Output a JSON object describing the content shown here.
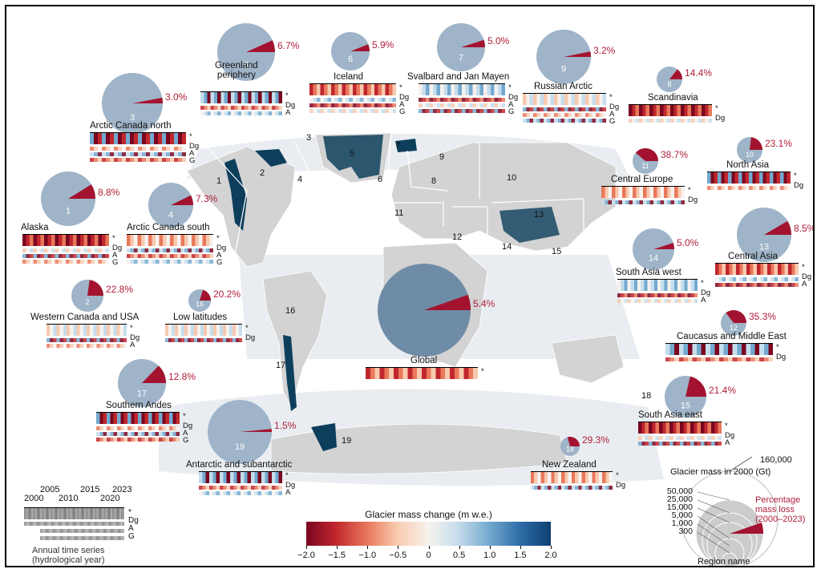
{
  "regions": [
    {
      "id": "1",
      "name": "Alaska",
      "pct": "8.8%",
      "rows": [
        "*",
        "Dg",
        "A",
        "G"
      ]
    },
    {
      "id": "2",
      "name": "Western Canada and USA",
      "pct": "22.8%",
      "rows": [
        "*",
        "Dg",
        "A"
      ]
    },
    {
      "id": "3",
      "name": "Arctic Canada north",
      "pct": "3.0%",
      "rows": [
        "*",
        "Dg",
        "A",
        "G"
      ]
    },
    {
      "id": "4",
      "name": "Arctic Canada south",
      "pct": "7.3%",
      "rows": [
        "*",
        "Dg",
        "A",
        "G"
      ]
    },
    {
      "id": "5",
      "name": "Greenland\nperiphery",
      "pct": "6.7%",
      "rows": [
        "*",
        "Dg",
        "A"
      ]
    },
    {
      "id": "6",
      "name": "Iceland",
      "pct": "5.9%",
      "rows": [
        "*",
        "Dg",
        "A",
        "G"
      ]
    },
    {
      "id": "7",
      "name": "Svalbard and Jan Mayen",
      "pct": "5.0%",
      "rows": [
        "*",
        "Dg",
        "A",
        "G"
      ]
    },
    {
      "id": "8",
      "name": "Scandinavia",
      "pct": "14.4%",
      "rows": [
        "*",
        "Dg"
      ]
    },
    {
      "id": "9",
      "name": "Russian Arctic",
      "pct": "3.2%",
      "rows": [
        "*",
        "Dg",
        "A",
        "G"
      ]
    },
    {
      "id": "10",
      "name": "North Asia",
      "pct": "23.1%",
      "rows": [
        "*",
        "Dg"
      ]
    },
    {
      "id": "11",
      "name": "Central Europe",
      "pct": "38.7%",
      "rows": [
        "*",
        "Dg"
      ]
    },
    {
      "id": "12",
      "name": "Caucasus and Middle East",
      "pct": "35.3%",
      "rows": [
        "*",
        "Dg"
      ]
    },
    {
      "id": "13",
      "name": "Central Asia",
      "pct": "8.5%",
      "rows": [
        "*",
        "Dg",
        "A"
      ]
    },
    {
      "id": "14",
      "name": "South Asia west",
      "pct": "5.0%",
      "rows": [
        "*",
        "Dg",
        "A"
      ]
    },
    {
      "id": "15",
      "name": "South Asia east",
      "pct": "21.4%",
      "rows": [
        "*",
        "Dg",
        "A"
      ]
    },
    {
      "id": "16",
      "name": "Low latitudes",
      "pct": "20.2%",
      "rows": [
        "*",
        "Dg"
      ]
    },
    {
      "id": "17",
      "name": "Southern Andes",
      "pct": "12.8%",
      "rows": [
        "*",
        "Dg",
        "A",
        "G"
      ]
    },
    {
      "id": "18",
      "name": "New Zealand",
      "pct": "29.3%",
      "rows": [
        "*",
        "Dg"
      ]
    },
    {
      "id": "19",
      "name": "Antarctic and subantarctic",
      "pct": "1.5%",
      "rows": [
        "*",
        "Dg",
        "A"
      ]
    },
    {
      "id": "",
      "name": "Global",
      "pct": "5.4%",
      "rows": [
        "*"
      ]
    }
  ],
  "map_numbers": [
    "1",
    "2",
    "3",
    "4",
    "5",
    "6",
    "7",
    "8",
    "9",
    "10",
    "11",
    "12",
    "13",
    "14",
    "15",
    "16",
    "17",
    "18",
    "19"
  ],
  "colorbar": {
    "title": "Glacier mass change (m w.e.)",
    "ticks": [
      "−2.0",
      "−1.5",
      "−1.0",
      "−0.5",
      "0",
      "0.5",
      "1.0",
      "1.5",
      "2.0"
    ]
  },
  "ts_legend": {
    "years_top": [
      "2005",
      "2015",
      "2023"
    ],
    "years_bottom": [
      "2000",
      "2010",
      "2020"
    ],
    "rows": [
      "*",
      "Dg",
      "A",
      "G"
    ],
    "caption_line1": "Annual time series",
    "caption_line2": "(hydrological year)"
  },
  "mass_legend": {
    "max_label": "160,000",
    "title": "Glacier mass in 2000 (Gt)",
    "values": [
      "50,000",
      "25,000",
      "15,000",
      "5,000",
      "1,000",
      "300"
    ],
    "pct_label_line1": "Percentage",
    "pct_label_line2": "mass loss",
    "pct_label_line3": "(2000–2023)",
    "region_label": "Region name"
  },
  "colors": {
    "pie": "#9fb4c8",
    "loss": "#a3132f",
    "land": "#d3d3d3",
    "ocean_band": "#e6ebef",
    "glacier": "#0d3f5c",
    "text_pct": "#b01e3a"
  }
}
